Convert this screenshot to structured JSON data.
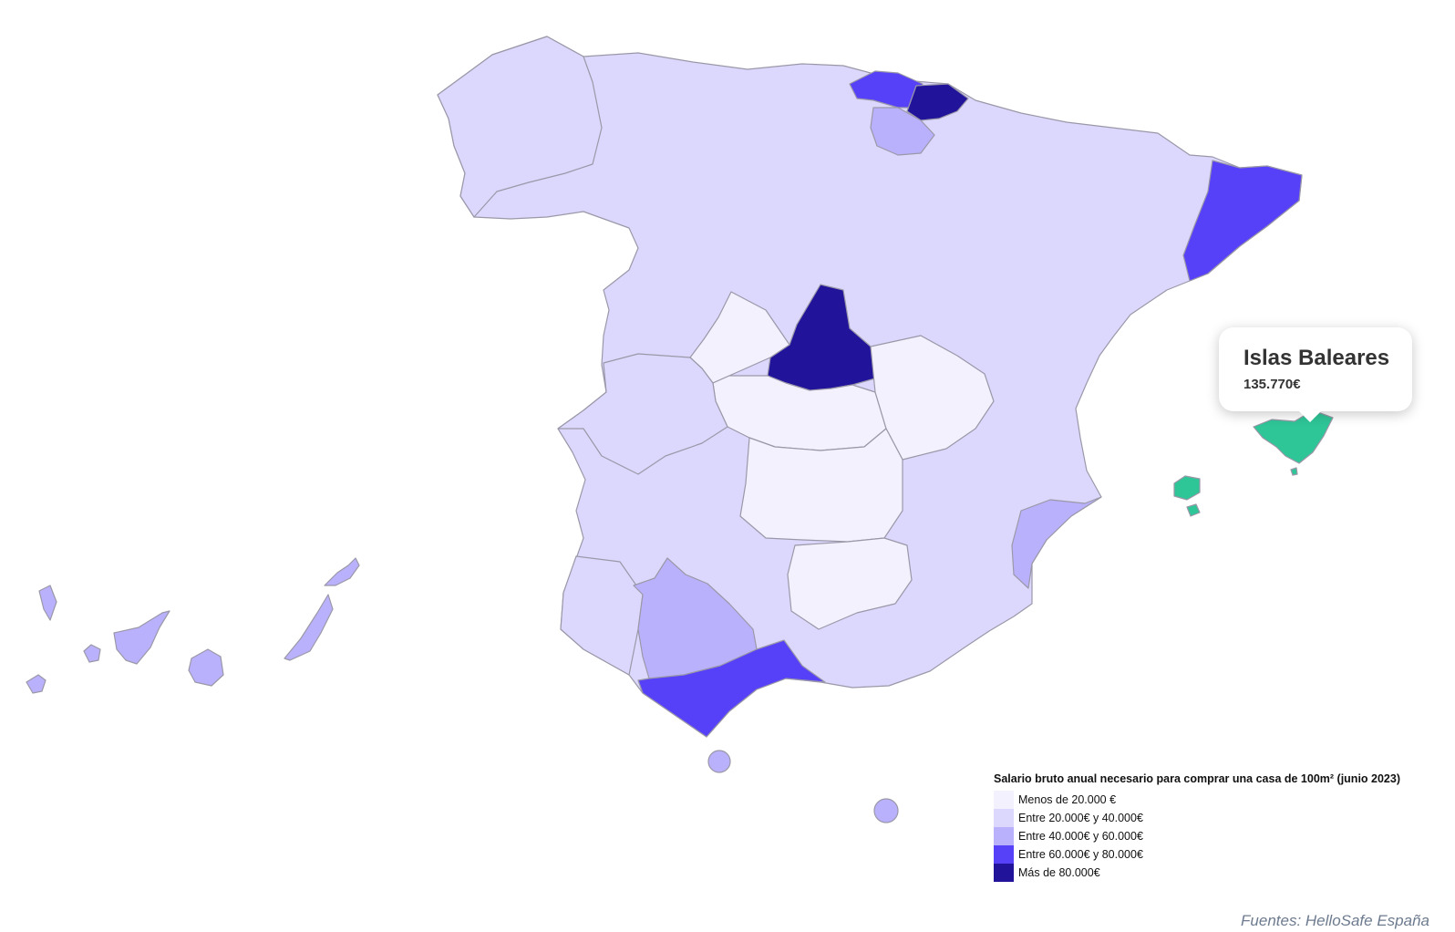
{
  "map": {
    "legend": {
      "title": "Salario bruto anual necesario para comprar una casa de 100m² (junio 2023)",
      "items": [
        {
          "label": "Menos de 20.000 €",
          "color": "#f3f1fe"
        },
        {
          "label": "Entre 20.000€ y 40.000€",
          "color": "#dcd8fd"
        },
        {
          "label": "Entre 40.000€ y 60.000€",
          "color": "#bab1fc"
        },
        {
          "label": "Entre 60.000€ y 80.000€",
          "color": "#5640f8"
        },
        {
          "label": "Más de 80.000€",
          "color": "#21139a"
        }
      ]
    },
    "highlight_color": "#2ec597",
    "tooltip": {
      "region": "Islas Baleares",
      "value": "135.770€"
    },
    "source": "Fuentes: HelloSafe España"
  }
}
